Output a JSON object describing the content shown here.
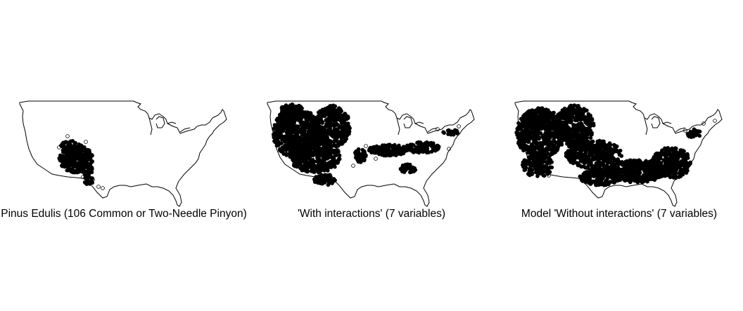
{
  "figure": {
    "panels": [
      {
        "caption": "Pinus Edulis (106 Common or Two-Needle Pinyon)",
        "map_layer": "Contiguous United States",
        "points": "occurrence records concentrated in the Four Corners region (Colorado Plateau)",
        "scatter_color": "#000000"
      },
      {
        "caption": "'With interactions' (7 variables)",
        "map_layer": "Contiguous United States",
        "points": "predicted presence across the western interior, Great Plains and scattered eastern clusters",
        "scatter_color": "#000000"
      },
      {
        "caption": "Model 'Without interactions' (7 variables)",
        "map_layer": "Contiguous United States",
        "points": "predicted presence across most of the West, southern Plains and the Southeast",
        "scatter_color": "#000000"
      }
    ]
  }
}
